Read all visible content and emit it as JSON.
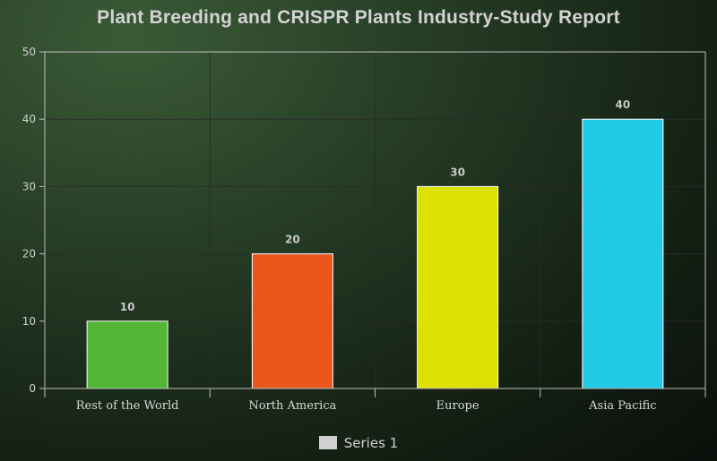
{
  "chart_data": {
    "type": "bar",
    "title": "Plant Breeding and CRISPR Plants Industry-Study Report",
    "categories": [
      "Rest of the World",
      "North America",
      "Europe",
      "Asia Pacific"
    ],
    "values": [
      10,
      20,
      30,
      40
    ],
    "data_labels": [
      "10",
      "20",
      "30",
      "40"
    ],
    "bar_colors": [
      "#52b535",
      "#e9571d",
      "#dde000",
      "#22cae5"
    ],
    "ylim": [
      0,
      50
    ],
    "yticks": [
      0,
      10,
      20,
      30,
      40,
      50
    ],
    "xlabel": "",
    "ylabel": "",
    "grid": true,
    "legend": {
      "placement": "bottom-center",
      "entries": [
        {
          "name": "Series 1",
          "color": "#d0d0d0"
        }
      ]
    }
  }
}
